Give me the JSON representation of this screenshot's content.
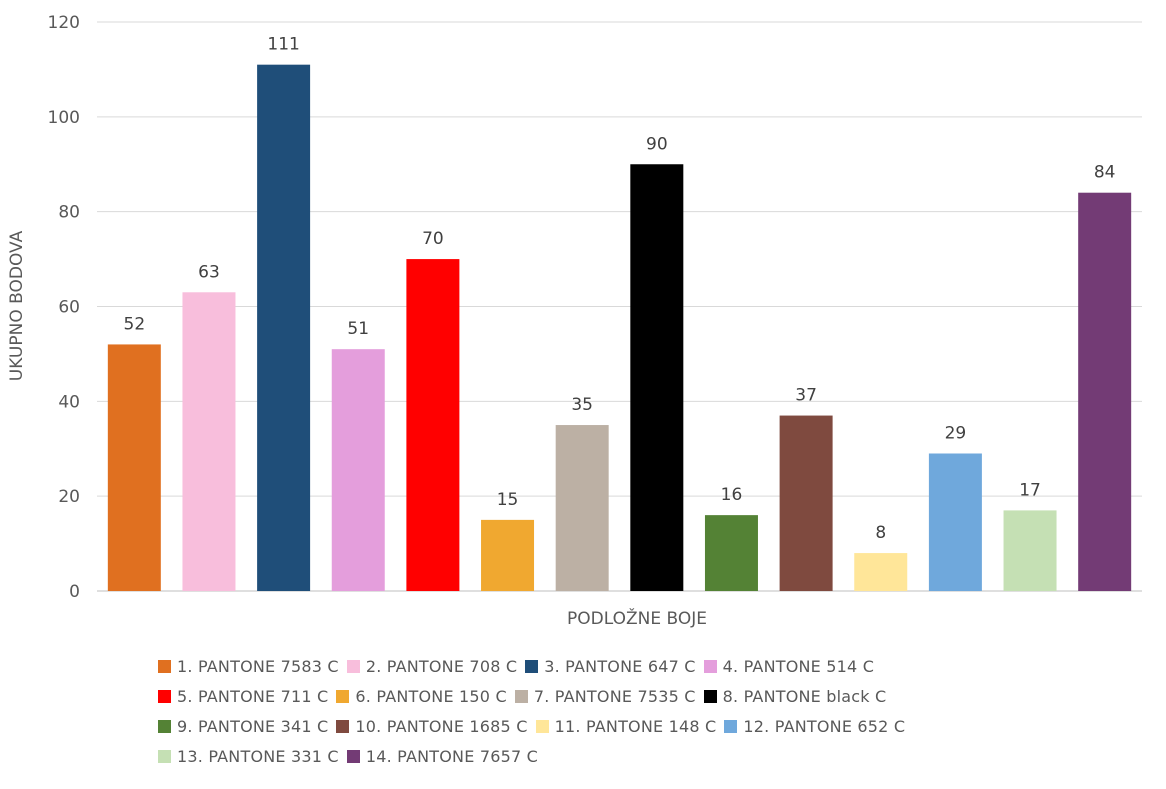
{
  "chart_data": {
    "type": "bar",
    "categories": [
      "1. PANTONE 7583 C",
      "2. PANTONE 708 C",
      "3. PANTONE 647 C",
      "4. PANTONE 514 C",
      "5. PANTONE 711 C",
      "6. PANTONE 150 C",
      "7. PANTONE 7535 C",
      "8. PANTONE black C",
      "9. PANTONE 341 C",
      "10. PANTONE 1685 C",
      "11. PANTONE 148 C",
      "12. PANTONE 652 C",
      "13. PANTONE 331 C",
      "14. PANTONE 7657 C"
    ],
    "values": [
      52,
      63,
      111,
      51,
      70,
      15,
      35,
      90,
      16,
      37,
      8,
      29,
      17,
      84
    ],
    "colors": [
      "#E07020",
      "#F8BEDC",
      "#1F4E79",
      "#E49EDC",
      "#FF0000",
      "#F0A830",
      "#BCB0A4",
      "#000000",
      "#548235",
      "#7F4A3F",
      "#FFE699",
      "#6FA8DC",
      "#C5E0B4",
      "#733B75"
    ],
    "title": "",
    "xlabel": "PODLOŽNE BOJE",
    "ylabel": "UKUPNO BODOVA",
    "ylim": [
      0,
      120
    ],
    "yticks": [
      0,
      20,
      40,
      60,
      80,
      100,
      120
    ],
    "grid": true,
    "legend_position": "bottom",
    "legend_rows": [
      [
        0,
        1,
        2,
        3
      ],
      [
        4,
        5,
        6,
        7
      ],
      [
        8,
        9,
        10,
        11
      ],
      [
        12,
        13
      ]
    ]
  }
}
